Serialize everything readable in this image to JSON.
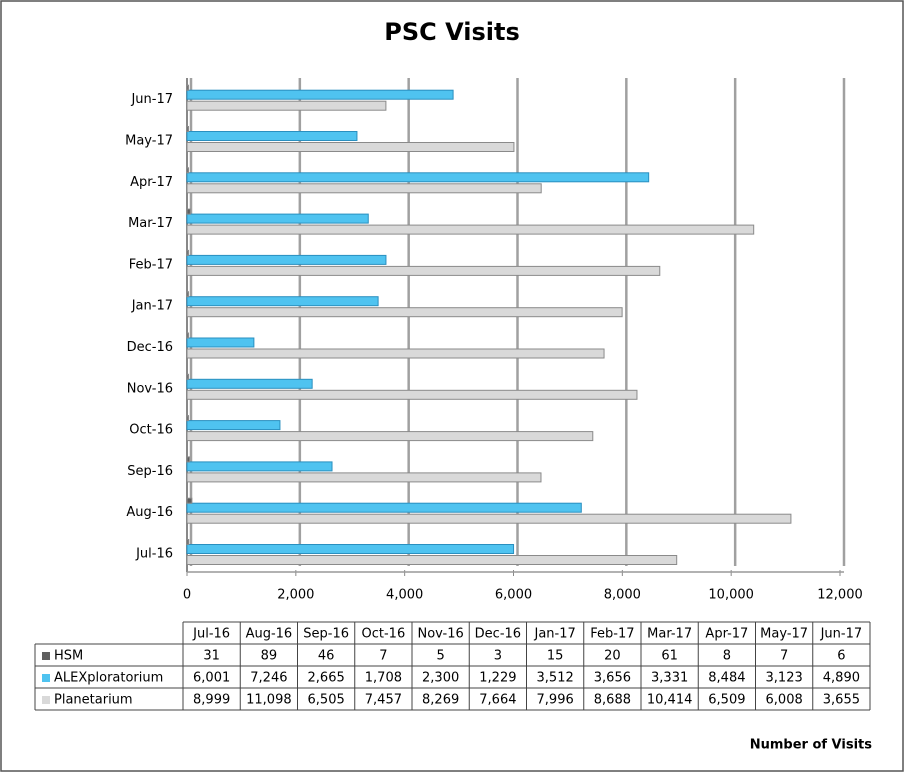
{
  "chart_data": {
    "type": "bar",
    "orientation": "horizontal",
    "title": "PSC Visits",
    "categories": [
      "Jul-16",
      "Aug-16",
      "Sep-16",
      "Oct-16",
      "Nov-16",
      "Dec-16",
      "Jan-17",
      "Feb-17",
      "Mar-17",
      "Apr-17",
      "May-17",
      "Jun-17"
    ],
    "series": [
      {
        "name": "HSM",
        "color": "#5f5f5f",
        "values": [
          31,
          89,
          46,
          7,
          5,
          3,
          15,
          20,
          61,
          8,
          7,
          6
        ],
        "value_labels": [
          "31",
          "89",
          "46",
          "7",
          "5",
          "3",
          "15",
          "20",
          "61",
          "8",
          "7",
          "6"
        ]
      },
      {
        "name": "ALEXploratorium",
        "color": "#4fc3f0",
        "values": [
          6001,
          7246,
          2665,
          1708,
          2300,
          1229,
          3512,
          3656,
          3331,
          8484,
          3123,
          4890
        ],
        "value_labels": [
          "6,001",
          "7,246",
          "2,665",
          "1,708",
          "2,300",
          "1,229",
          "3,512",
          "3,656",
          "3,331",
          "8,484",
          "3,123",
          "4,890"
        ]
      },
      {
        "name": "Planetarium",
        "color": "#d9d9d9",
        "values": [
          8999,
          11098,
          6505,
          7457,
          8269,
          7664,
          7996,
          8688,
          10414,
          6509,
          6008,
          3655
        ],
        "value_labels": [
          "8,999",
          "11,098",
          "6,505",
          "7,457",
          "8,269",
          "7,664",
          "7,996",
          "8,688",
          "10,414",
          "6,509",
          "6,008",
          "3,655"
        ]
      }
    ],
    "xlim": [
      0,
      12000
    ],
    "xticks": [
      0,
      {
        "value": 2000,
        "label": "2,000"
      },
      {
        "value": 4000,
        "label": "4,000"
      },
      {
        "value": 6000,
        "label": "6,000"
      },
      {
        "value": 8000,
        "label": "8,000"
      },
      {
        "value": 10000,
        "label": "10,000"
      },
      {
        "value": 12000,
        "label": "12,000"
      }
    ],
    "x_axis_label": "Number of Visits",
    "grid": true
  }
}
